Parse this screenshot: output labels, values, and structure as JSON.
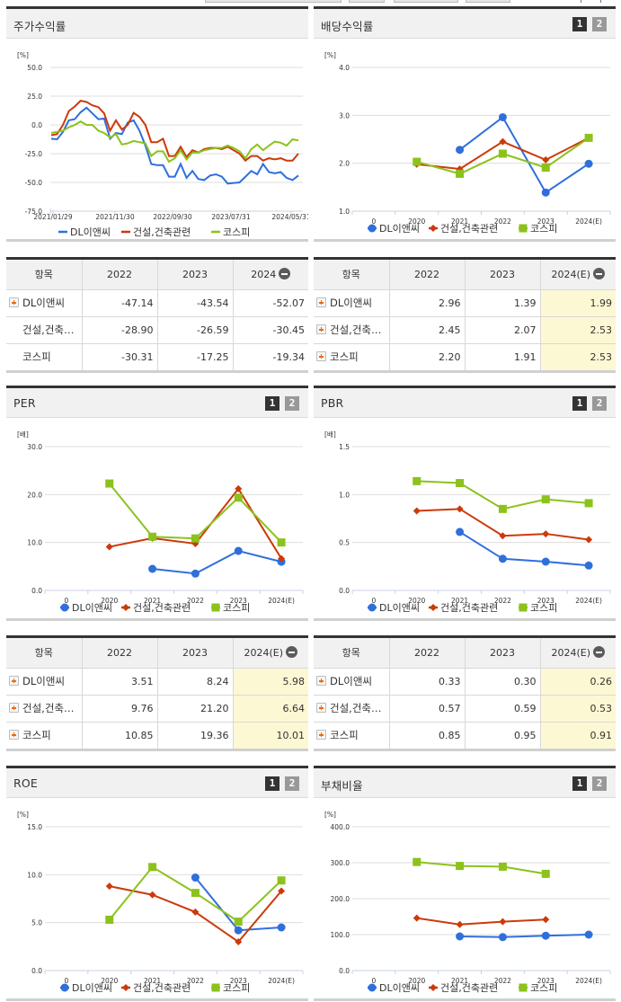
{
  "legend": [
    "DL이앤씨",
    "건설,건축관련",
    "코스피"
  ],
  "colors": {
    "company": "#2f6fdc",
    "sector": "#cc3a0a",
    "kospi": "#8cc21c",
    "estimate_bg": "#fdf8d4"
  },
  "pager": {
    "page1": "1",
    "page2": "2"
  },
  "stock_return": {
    "title": "주가수익률",
    "unit": "[%]",
    "yticks": [
      "50.0",
      "25.0",
      "0.0",
      "-25.0",
      "-50.0",
      "-75.0"
    ],
    "xticks": [
      "2021/01/29",
      "2021/11/30",
      "2022/09/30",
      "2023/07/31",
      "2024/05/31"
    ]
  },
  "stock_return_table": {
    "headers": [
      "항목",
      "2022",
      "2023",
      "2024"
    ],
    "rows": [
      {
        "name": "DL이앤씨",
        "values": [
          "-47.14",
          "-43.54",
          "-52.07"
        ],
        "expandable": true
      },
      {
        "name": "건설,건축…",
        "values": [
          "-28.90",
          "-26.59",
          "-30.45"
        ],
        "expandable": false
      },
      {
        "name": "코스피",
        "values": [
          "-30.31",
          "-17.25",
          "-19.34"
        ],
        "expandable": false
      }
    ]
  },
  "dividend": {
    "title": "배당수익률",
    "unit": "[%]",
    "yticks": [
      "4.0",
      "3.0",
      "2.0",
      "1.0"
    ],
    "xticks": [
      "0",
      "2020",
      "2021",
      "2022",
      "2023",
      "2024(E)"
    ]
  },
  "dividend_table": {
    "headers": [
      "항목",
      "2022",
      "2023",
      "2024(E)"
    ],
    "rows": [
      {
        "name": "DL이앤씨",
        "values": [
          "2.96",
          "1.39",
          "1.99"
        ]
      },
      {
        "name": "건설,건축…",
        "values": [
          "2.45",
          "2.07",
          "2.53"
        ]
      },
      {
        "name": "코스피",
        "values": [
          "2.20",
          "1.91",
          "2.53"
        ]
      }
    ]
  },
  "per": {
    "title": "PER",
    "unit": "[배]",
    "yticks": [
      "30.0",
      "20.0",
      "10.0",
      "0.0"
    ],
    "xticks": [
      "0",
      "2020",
      "2021",
      "2022",
      "2023",
      "2024(E)"
    ]
  },
  "per_table": {
    "headers": [
      "항목",
      "2022",
      "2023",
      "2024(E)"
    ],
    "rows": [
      {
        "name": "DL이앤씨",
        "values": [
          "3.51",
          "8.24",
          "5.98"
        ]
      },
      {
        "name": "건설,건축…",
        "values": [
          "9.76",
          "21.20",
          "6.64"
        ]
      },
      {
        "name": "코스피",
        "values": [
          "10.85",
          "19.36",
          "10.01"
        ]
      }
    ]
  },
  "pbr": {
    "title": "PBR",
    "unit": "[배]",
    "yticks": [
      "1.5",
      "1.0",
      "0.5",
      "0.0"
    ],
    "xticks": [
      "0",
      "2020",
      "2021",
      "2022",
      "2023",
      "2024(E)"
    ]
  },
  "pbr_table": {
    "headers": [
      "항목",
      "2022",
      "2023",
      "2024(E)"
    ],
    "rows": [
      {
        "name": "DL이앤씨",
        "values": [
          "0.33",
          "0.30",
          "0.26"
        ]
      },
      {
        "name": "건설,건축…",
        "values": [
          "0.57",
          "0.59",
          "0.53"
        ]
      },
      {
        "name": "코스피",
        "values": [
          "0.85",
          "0.95",
          "0.91"
        ]
      }
    ]
  },
  "roe": {
    "title": "ROE",
    "unit": "[%]",
    "yticks": [
      "15.0",
      "10.0",
      "5.0",
      "0.0"
    ],
    "xticks": [
      "0",
      "2020",
      "2021",
      "2022",
      "2023",
      "2024(E)"
    ]
  },
  "debt": {
    "title": "부채비율",
    "unit": "[%]",
    "yticks": [
      "400.0",
      "300.0",
      "200.0",
      "100.0",
      "0.0"
    ],
    "xticks": [
      "0",
      "2020",
      "2021",
      "2022",
      "2023",
      "2024(E)"
    ]
  },
  "chart_data": [
    {
      "type": "line",
      "title": "주가수익률",
      "ylabel": "[%]",
      "ylim": [
        -75,
        50
      ],
      "x": [
        "2021/01/29",
        "2021/11/30",
        "2022/09/30",
        "2023/07/31",
        "2024/05/31"
      ],
      "series": [
        {
          "name": "DL이앤씨",
          "values": [
            -12,
            -12.5,
            -6,
            4,
            5,
            11,
            15,
            10,
            5,
            5.5,
            -12,
            -7,
            -8,
            2,
            4,
            -5,
            -18,
            -34,
            -35,
            -35,
            -45,
            -45,
            -34,
            -46,
            -40,
            -47,
            -48,
            -44,
            -43,
            -45,
            -51,
            -50.5,
            -50,
            -45,
            -40,
            -43,
            -34,
            -41,
            -42,
            -41,
            -46,
            -48,
            -44
          ]
        },
        {
          "name": "건설,건축관련",
          "values": [
            -9,
            -8,
            0,
            12,
            16,
            21,
            20,
            17,
            15.5,
            10,
            -5,
            4,
            -4,
            0,
            10.5,
            7,
            0,
            -15,
            -15,
            -12,
            -27,
            -27,
            -19,
            -28,
            -22,
            -24,
            -21,
            -20,
            -20,
            -21,
            -19,
            -22,
            -25,
            -31,
            -27,
            -27,
            -31,
            -29,
            -30,
            -29,
            -31,
            -31,
            -25
          ]
        },
        {
          "name": "코스피",
          "values": [
            -7,
            -6,
            -5,
            -2,
            0,
            3,
            0,
            0,
            -5,
            -7,
            -11,
            -8,
            -17,
            -16,
            -14,
            -15,
            -16,
            -27,
            -23,
            -23,
            -32,
            -29,
            -22,
            -30,
            -24,
            -24,
            -22,
            -21,
            -20,
            -20,
            -18,
            -20,
            -23,
            -29,
            -21,
            -17,
            -22,
            -18,
            -14.5,
            -15.5,
            -18,
            -12.5,
            -13.5
          ]
        }
      ],
      "legend_position": "bottom",
      "grid": true
    },
    {
      "type": "line",
      "title": "배당수익률",
      "ylabel": "[%]",
      "ylim": [
        1.0,
        4.0
      ],
      "categories": [
        "0",
        "2020",
        "2021",
        "2022",
        "2023",
        "2024(E)"
      ],
      "series": [
        {
          "name": "DL이앤씨",
          "values": [
            null,
            null,
            2.28,
            2.96,
            1.39,
            1.99
          ]
        },
        {
          "name": "건설,건축관련",
          "values": [
            null,
            1.98,
            1.88,
            2.45,
            2.07,
            2.53
          ]
        },
        {
          "name": "코스피",
          "values": [
            null,
            2.03,
            1.78,
            2.2,
            1.91,
            2.53
          ]
        }
      ],
      "legend_position": "bottom",
      "grid": true
    },
    {
      "type": "line",
      "title": "PER",
      "ylabel": "[배]",
      "ylim": [
        0,
        30
      ],
      "categories": [
        "0",
        "2020",
        "2021",
        "2022",
        "2023",
        "2024(E)"
      ],
      "series": [
        {
          "name": "DL이앤씨",
          "values": [
            null,
            null,
            4.5,
            3.51,
            8.24,
            5.98
          ]
        },
        {
          "name": "건설,건축관련",
          "values": [
            null,
            9.1,
            10.9,
            9.76,
            21.2,
            6.64
          ]
        },
        {
          "name": "코스피",
          "values": [
            null,
            22.3,
            11.2,
            10.85,
            19.36,
            10.01
          ]
        }
      ],
      "legend_position": "bottom",
      "grid": true
    },
    {
      "type": "line",
      "title": "PBR",
      "ylabel": "[배]",
      "ylim": [
        0,
        1.5
      ],
      "categories": [
        "0",
        "2020",
        "2021",
        "2022",
        "2023",
        "2024(E)"
      ],
      "series": [
        {
          "name": "DL이앤씨",
          "values": [
            null,
            null,
            0.61,
            0.33,
            0.3,
            0.26
          ]
        },
        {
          "name": "건설,건축관련",
          "values": [
            null,
            0.83,
            0.85,
            0.57,
            0.59,
            0.53
          ]
        },
        {
          "name": "코스피",
          "values": [
            null,
            1.14,
            1.12,
            0.85,
            0.95,
            0.91
          ]
        }
      ],
      "legend_position": "bottom",
      "grid": true
    },
    {
      "type": "line",
      "title": "ROE",
      "ylabel": "[%]",
      "ylim": [
        0,
        15
      ],
      "categories": [
        "0",
        "2020",
        "2021",
        "2022",
        "2023",
        "2024(E)"
      ],
      "series": [
        {
          "name": "DL이앤씨",
          "values": [
            null,
            null,
            null,
            9.7,
            4.2,
            4.5
          ]
        },
        {
          "name": "건설,건축관련",
          "values": [
            null,
            8.8,
            7.9,
            6.1,
            3.0,
            8.3
          ]
        },
        {
          "name": "코스피",
          "values": [
            null,
            5.3,
            10.8,
            8.1,
            5.1,
            9.4
          ]
        }
      ],
      "legend_position": "bottom",
      "grid": true
    },
    {
      "type": "line",
      "title": "부채비율",
      "ylabel": "[%]",
      "ylim": [
        0,
        400
      ],
      "categories": [
        "0",
        "2020",
        "2021",
        "2022",
        "2023",
        "2024(E)"
      ],
      "series": [
        {
          "name": "DL이앤씨",
          "values": [
            null,
            null,
            95,
            93,
            97,
            100
          ]
        },
        {
          "name": "건설,건축관련",
          "values": [
            null,
            146,
            128,
            136,
            142,
            null
          ]
        },
        {
          "name": "코스피",
          "values": [
            null,
            302,
            291,
            289,
            269,
            null
          ]
        }
      ],
      "legend_position": "bottom",
      "grid": true
    }
  ]
}
